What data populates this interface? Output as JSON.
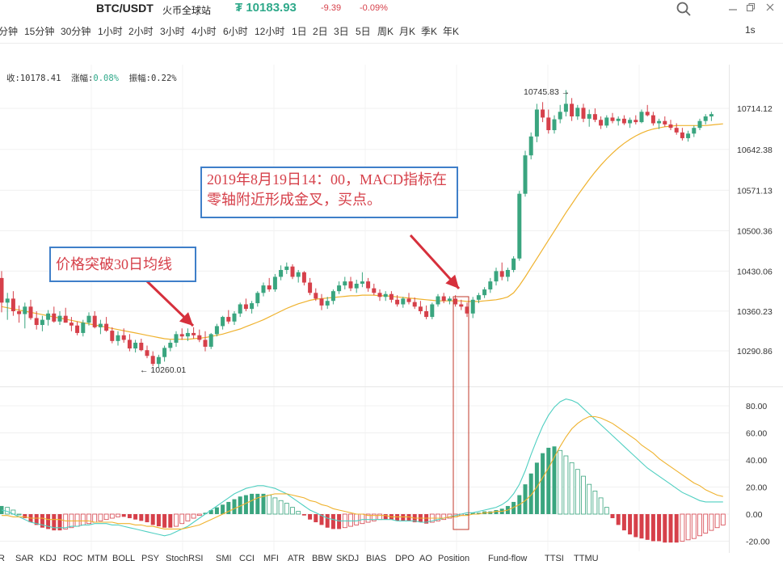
{
  "header": {
    "pair": "BTC/USDT",
    "exchange": "火币全球站",
    "price": "₮ 10183.93",
    "change": "-9.39",
    "change_pct": "-0.09%",
    "price_color": "#2fa98a",
    "down_color": "#d6404a"
  },
  "intervals": [
    "分钟",
    "15分钟",
    "30分钟",
    "1小时",
    "2小时",
    "3小时",
    "4小时",
    "6小时",
    "12小时",
    "1日",
    "2日",
    "3日",
    "5日",
    "周K",
    "月K",
    "季K",
    "年K"
  ],
  "speed": "1s",
  "info": {
    "close_label": "收:",
    "close_value": "10178.41",
    "amp_label": "涨幅:",
    "amp_value": "0.08%",
    "swing_label": "振幅:",
    "swing_value": "0.22%"
  },
  "annotations": {
    "golden_cross": "2019年8月19日14：00，MACD指标在零轴附近形成金叉，买点。",
    "breakout": "价格突破30日均线"
  },
  "indicator_tabs": [
    "R",
    "SAR",
    "KDJ",
    "ROC",
    "MTM",
    "BOLL",
    "PSY",
    "StochRSI",
    "SMI",
    "CCI",
    "MFI",
    "ATR",
    "BBW",
    "SKDJ",
    "BIAS",
    "DPO",
    "AO",
    "Position",
    "Fund-flow",
    "TTSI",
    "TTMU"
  ],
  "icons": [
    "search-icon",
    "minimize-icon",
    "restore-icon",
    "close-icon",
    "arrow-right-icon",
    "arrow-left-icon"
  ],
  "chart_data": [
    {
      "type": "candlestick",
      "title": "",
      "y_ticks": [
        10714.12,
        10642.38,
        10571.13,
        10500.36,
        10430.06,
        10360.23,
        10290.86
      ],
      "ylim": [
        10240,
        10770
      ],
      "high_label": "10745.83",
      "low_label": "10260.01",
      "up_color": "#3aa57f",
      "down_color": "#d6404a",
      "ma_color": "#efb22e",
      "ma_name": "MA30",
      "ohlc": [
        [
          10418,
          10430,
          10358,
          10375
        ],
        [
          10375,
          10392,
          10345,
          10382
        ],
        [
          10382,
          10395,
          10352,
          10360
        ],
        [
          10360,
          10370,
          10340,
          10355
        ],
        [
          10355,
          10375,
          10330,
          10368
        ],
        [
          10368,
          10380,
          10345,
          10348
        ],
        [
          10348,
          10360,
          10328,
          10336
        ],
        [
          10336,
          10352,
          10325,
          10345
        ],
        [
          10345,
          10362,
          10335,
          10356
        ],
        [
          10356,
          10368,
          10340,
          10342
        ],
        [
          10342,
          10360,
          10336,
          10352
        ],
        [
          10352,
          10366,
          10340,
          10340
        ],
        [
          10340,
          10350,
          10325,
          10335
        ],
        [
          10335,
          10342,
          10318,
          10322
        ],
        [
          10322,
          10345,
          10316,
          10340
        ],
        [
          10340,
          10358,
          10335,
          10352
        ],
        [
          10352,
          10360,
          10330,
          10332
        ],
        [
          10332,
          10345,
          10320,
          10338
        ],
        [
          10338,
          10350,
          10324,
          10326
        ],
        [
          10326,
          10332,
          10304,
          10308
        ],
        [
          10308,
          10325,
          10300,
          10318
        ],
        [
          10318,
          10330,
          10305,
          10310
        ],
        [
          10310,
          10320,
          10290,
          10295
        ],
        [
          10295,
          10310,
          10288,
          10305
        ],
        [
          10305,
          10312,
          10290,
          10292
        ],
        [
          10292,
          10300,
          10278,
          10282
        ],
        [
          10282,
          10290,
          10264,
          10268
        ],
        [
          10268,
          10284,
          10262,
          10280
        ],
        [
          10280,
          10300,
          10272,
          10296
        ],
        [
          10296,
          10310,
          10290,
          10305
        ],
        [
          10305,
          10325,
          10298,
          10320
        ],
        [
          10320,
          10330,
          10310,
          10316
        ],
        [
          10316,
          10330,
          10308,
          10322
        ],
        [
          10322,
          10332,
          10312,
          10318
        ],
        [
          10318,
          10328,
          10306,
          10310
        ],
        [
          10310,
          10325,
          10290,
          10298
        ],
        [
          10298,
          10322,
          10294,
          10320
        ],
        [
          10320,
          10338,
          10316,
          10334
        ],
        [
          10334,
          10352,
          10328,
          10350
        ],
        [
          10350,
          10362,
          10338,
          10342
        ],
        [
          10342,
          10360,
          10336,
          10356
        ],
        [
          10356,
          10375,
          10350,
          10372
        ],
        [
          10372,
          10382,
          10360,
          10364
        ],
        [
          10364,
          10378,
          10356,
          10374
        ],
        [
          10374,
          10395,
          10368,
          10392
        ],
        [
          10392,
          10410,
          10386,
          10405
        ],
        [
          10405,
          10418,
          10394,
          10398
        ],
        [
          10398,
          10425,
          10394,
          10420
        ],
        [
          10420,
          10440,
          10414,
          10432
        ],
        [
          10432,
          10445,
          10425,
          10438
        ],
        [
          10438,
          10442,
          10416,
          10420
        ],
        [
          10420,
          10432,
          10410,
          10428
        ],
        [
          10428,
          10430,
          10405,
          10410
        ],
        [
          10410,
          10418,
          10388,
          10392
        ],
        [
          10392,
          10400,
          10378,
          10382
        ],
        [
          10382,
          10390,
          10362,
          10370
        ],
        [
          10370,
          10385,
          10364,
          10378
        ],
        [
          10378,
          10398,
          10372,
          10395
        ],
        [
          10395,
          10412,
          10390,
          10405
        ],
        [
          10405,
          10420,
          10398,
          10412
        ],
        [
          10412,
          10420,
          10395,
          10400
        ],
        [
          10400,
          10415,
          10392,
          10408
        ],
        [
          10408,
          10428,
          10402,
          10412
        ],
        [
          10412,
          10418,
          10394,
          10400
        ],
        [
          10400,
          10408,
          10388,
          10392
        ],
        [
          10392,
          10398,
          10378,
          10385
        ],
        [
          10385,
          10395,
          10378,
          10390
        ],
        [
          10390,
          10395,
          10375,
          10380
        ],
        [
          10380,
          10388,
          10368,
          10372
        ],
        [
          10372,
          10385,
          10366,
          10382
        ],
        [
          10382,
          10392,
          10372,
          10376
        ],
        [
          10376,
          10384,
          10364,
          10368
        ],
        [
          10368,
          10378,
          10355,
          10360
        ],
        [
          10360,
          10370,
          10346,
          10350
        ],
        [
          10350,
          10375,
          10346,
          10372
        ],
        [
          10372,
          10390,
          10368,
          10386
        ],
        [
          10386,
          10392,
          10374,
          10378
        ],
        [
          10378,
          10386,
          10372,
          10382
        ],
        [
          10382,
          10388,
          10368,
          10372
        ],
        [
          10372,
          10380,
          10362,
          10368
        ],
        [
          10368,
          10375,
          10350,
          10356
        ],
        [
          10356,
          10385,
          10348,
          10380
        ],
        [
          10380,
          10392,
          10374,
          10388
        ],
        [
          10388,
          10402,
          10383,
          10398
        ],
        [
          10398,
          10418,
          10392,
          10412
        ],
        [
          10412,
          10436,
          10405,
          10430
        ],
        [
          10430,
          10445,
          10414,
          10420
        ],
        [
          10420,
          10436,
          10412,
          10432
        ],
        [
          10432,
          10456,
          10428,
          10452
        ],
        [
          10452,
          10570,
          10448,
          10565
        ],
        [
          10565,
          10640,
          10560,
          10632
        ],
        [
          10632,
          10672,
          10625,
          10665
        ],
        [
          10665,
          10722,
          10655,
          10712
        ],
        [
          10712,
          10725,
          10690,
          10698
        ],
        [
          10698,
          10712,
          10670,
          10676
        ],
        [
          10676,
          10702,
          10670,
          10695
        ],
        [
          10695,
          10720,
          10688,
          10708
        ],
        [
          10708,
          10746,
          10700,
          10722
        ],
        [
          10722,
          10732,
          10692,
          10700
        ],
        [
          10700,
          10720,
          10694,
          10715
        ],
        [
          10715,
          10722,
          10690,
          10696
        ],
        [
          10696,
          10712,
          10682,
          10704
        ],
        [
          10704,
          10714,
          10690,
          10694
        ],
        [
          10694,
          10700,
          10678,
          10684
        ],
        [
          10684,
          10702,
          10680,
          10698
        ],
        [
          10698,
          10706,
          10688,
          10692
        ],
        [
          10692,
          10700,
          10684,
          10696
        ],
        [
          10696,
          10702,
          10685,
          10688
        ],
        [
          10688,
          10698,
          10680,
          10694
        ],
        [
          10694,
          10702,
          10686,
          10690
        ],
        [
          10690,
          10712,
          10688,
          10708
        ],
        [
          10708,
          10720,
          10700,
          10702
        ],
        [
          10702,
          10708,
          10684,
          10688
        ],
        [
          10688,
          10696,
          10678,
          10692
        ],
        [
          10692,
          10700,
          10682,
          10686
        ],
        [
          10686,
          10694,
          10676,
          10680
        ],
        [
          10680,
          10688,
          10668,
          10672
        ],
        [
          10672,
          10680,
          10658,
          10662
        ],
        [
          10662,
          10675,
          10656,
          10670
        ],
        [
          10670,
          10684,
          10664,
          10680
        ],
        [
          10680,
          10696,
          10676,
          10692
        ],
        [
          10692,
          10704,
          10686,
          10700
        ],
        [
          10700,
          10708,
          10692,
          10704
        ]
      ],
      "ma": [
        10368,
        10366,
        10364,
        10362,
        10360,
        10358,
        10356,
        10354,
        10352,
        10350,
        10348,
        10346,
        10344,
        10342,
        10340,
        10338,
        10336,
        10334,
        10332,
        10330,
        10328,
        10326,
        10324,
        10322,
        10320,
        10318,
        10316,
        10314,
        10312,
        10311,
        10311,
        10311,
        10311,
        10312,
        10313,
        10314,
        10316,
        10318,
        10320,
        10323,
        10326,
        10329,
        10333,
        10337,
        10341,
        10345,
        10350,
        10355,
        10360,
        10365,
        10369,
        10373,
        10376,
        10379,
        10381,
        10382,
        10383,
        10384,
        10385,
        10386,
        10387,
        10387,
        10388,
        10388,
        10388,
        10387,
        10387,
        10386,
        10385,
        10384,
        10383,
        10382,
        10381,
        10380,
        10379,
        10378,
        10378,
        10378,
        10378,
        10378,
        10377,
        10377,
        10377,
        10378,
        10379,
        10380,
        10382,
        10385,
        10392,
        10405,
        10420,
        10436,
        10452,
        10468,
        10484,
        10500,
        10516,
        10532,
        10547,
        10562,
        10576,
        10590,
        10603,
        10615,
        10626,
        10636,
        10645,
        10653,
        10660,
        10666,
        10671,
        10675,
        10678,
        10680,
        10682,
        10683,
        10684,
        10684,
        10684,
        10684,
        10684,
        10684,
        10685,
        10686,
        10687
      ]
    },
    {
      "type": "macd",
      "title": "",
      "y_ticks": [
        80.0,
        60.0,
        40.0,
        20.0,
        0.0,
        -20.0
      ],
      "ylim": [
        -25,
        90
      ],
      "dif_color": "#4fcfc1",
      "dea_color": "#efb22e",
      "up_color": "#3aa57f",
      "down_color": "#d6404a",
      "histogram": [
        6,
        5,
        3,
        0,
        -3,
        -6,
        -8,
        -10,
        -11,
        -12,
        -12,
        -11,
        -10,
        -9,
        -8,
        -7,
        -6,
        -5,
        -4,
        -3,
        -2,
        -2,
        -3,
        -4,
        -5,
        -6,
        -8,
        -9,
        -10,
        -10,
        -9,
        -7,
        -5,
        -3,
        -1,
        1,
        3,
        5,
        7,
        9,
        11,
        13,
        14,
        15,
        15,
        15,
        14,
        12,
        10,
        8,
        5,
        2,
        -1,
        -4,
        -6,
        -8,
        -10,
        -11,
        -11,
        -10,
        -9,
        -8,
        -7,
        -6,
        -5,
        -4,
        -4,
        -4,
        -5,
        -5,
        -5,
        -6,
        -6,
        -7,
        -6,
        -5,
        -4,
        -3,
        -2,
        -1,
        0,
        1,
        1,
        2,
        2,
        3,
        4,
        6,
        9,
        14,
        22,
        30,
        38,
        45,
        49,
        50,
        47,
        43,
        38,
        33,
        28,
        22,
        17,
        12,
        5,
        -3,
        -8,
        -12,
        -15,
        -17,
        -18,
        -19,
        -20,
        -20,
        -21,
        -21,
        -21,
        -20,
        -19,
        -18,
        -16,
        -14,
        -12,
        -10,
        -8
      ],
      "dif": [
        3,
        2,
        0,
        -2,
        -4,
        -6,
        -7,
        -8,
        -9,
        -10,
        -10,
        -10,
        -9,
        -9,
        -8,
        -8,
        -7,
        -7,
        -7,
        -8,
        -8,
        -9,
        -10,
        -11,
        -12,
        -13,
        -14,
        -15,
        -16,
        -15,
        -13,
        -11,
        -9,
        -6,
        -3,
        0,
        3,
        6,
        9,
        12,
        15,
        17,
        19,
        20,
        21,
        21,
        20,
        19,
        17,
        15,
        12,
        9,
        6,
        3,
        1,
        -1,
        -3,
        -4,
        -5,
        -5,
        -5,
        -5,
        -4,
        -4,
        -4,
        -4,
        -4,
        -4,
        -5,
        -5,
        -5,
        -5,
        -6,
        -6,
        -5,
        -4,
        -3,
        -2,
        -1,
        0,
        1,
        1,
        2,
        3,
        4,
        5,
        7,
        10,
        15,
        22,
        32,
        44,
        55,
        65,
        73,
        79,
        83,
        85,
        84,
        82,
        78,
        74,
        70,
        66,
        62,
        58,
        54,
        50,
        46,
        42,
        38,
        34,
        31,
        28,
        25,
        22,
        19,
        16,
        14,
        12,
        10,
        9,
        9,
        9,
        9
      ],
      "dea": [
        -1,
        -1,
        -2,
        -2,
        -2,
        -3,
        -3,
        -3,
        -4,
        -4,
        -4,
        -5,
        -5,
        -5,
        -5,
        -5,
        -6,
        -6,
        -6,
        -6,
        -7,
        -7,
        -7,
        -8,
        -8,
        -9,
        -9,
        -10,
        -11,
        -11,
        -11,
        -11,
        -10,
        -9,
        -8,
        -6,
        -4,
        -2,
        0,
        2,
        4,
        6,
        8,
        10,
        12,
        13,
        14,
        15,
        15,
        15,
        14,
        13,
        12,
        10,
        9,
        7,
        6,
        4,
        3,
        2,
        1,
        0,
        0,
        -1,
        -1,
        -1,
        -1,
        -2,
        -2,
        -2,
        -2,
        -3,
        -3,
        -3,
        -3,
        -3,
        -3,
        -2,
        -2,
        -1,
        -1,
        0,
        0,
        1,
        1,
        2,
        2,
        3,
        5,
        7,
        10,
        14,
        20,
        27,
        34,
        42,
        50,
        57,
        63,
        67,
        70,
        72,
        72,
        71,
        69,
        67,
        64,
        61,
        58,
        55,
        51,
        48,
        45,
        41,
        38,
        35,
        32,
        29,
        26,
        23,
        21,
        18,
        16,
        14,
        13
      ]
    }
  ]
}
